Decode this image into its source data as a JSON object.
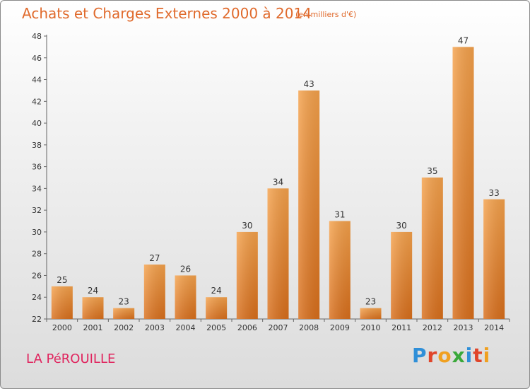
{
  "chart_data": {
    "type": "bar",
    "title": "Achats et Charges Externes 2000 à 2014",
    "subtitle": "(en milliers d'€)",
    "categories": [
      "2000",
      "2001",
      "2002",
      "2003",
      "2004",
      "2005",
      "2006",
      "2007",
      "2008",
      "2009",
      "2010",
      "2011",
      "2012",
      "2013",
      "2014"
    ],
    "values": [
      25,
      24,
      23,
      27,
      26,
      24,
      30,
      34,
      43,
      31,
      23,
      30,
      35,
      47,
      33
    ],
    "ylim": [
      22,
      48
    ],
    "yticks": [
      22,
      24,
      26,
      28,
      30,
      32,
      34,
      36,
      38,
      40,
      42,
      44,
      46,
      48
    ],
    "grid": false,
    "bar_color": "#f09a40"
  },
  "city": "LA PéROUILLE",
  "logo": {
    "text": "Proxiti",
    "letters": [
      {
        "char": "P",
        "color": "#2f8fd8"
      },
      {
        "char": "r",
        "color": "#e0452a"
      },
      {
        "char": "o",
        "color": "#f0a020"
      },
      {
        "char": "x",
        "color": "#3aa83a"
      },
      {
        "char": "i",
        "color": "#2f8fd8"
      },
      {
        "char": "t",
        "color": "#e0452a"
      },
      {
        "char": "i",
        "color": "#f0a020"
      }
    ]
  }
}
